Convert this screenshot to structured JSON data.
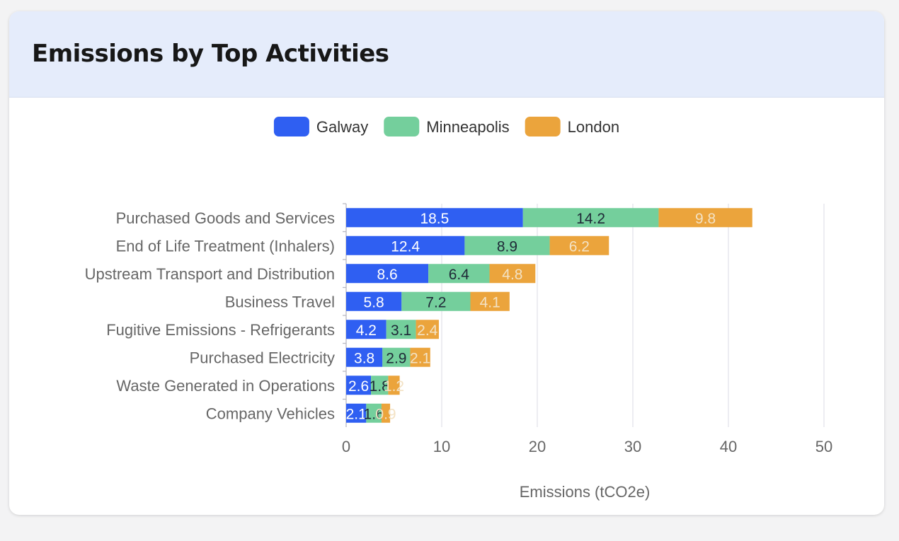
{
  "card": {
    "title": "Emissions by Top Activities"
  },
  "colors": {
    "galway": "#2f5ff2",
    "minneapolis": "#74cf9c",
    "london": "#eba43c",
    "label_galway": "#ffffff",
    "label_minneapolis": "#1f2937",
    "label_london": "#f3e2c4",
    "grid": "#e3e3ea",
    "axis_text": "#666666"
  },
  "chart_data": {
    "type": "bar",
    "orientation": "horizontal",
    "stacked": true,
    "title": "",
    "xlabel": "Emissions (tCO2e)",
    "ylabel": "",
    "xlim": [
      0,
      50
    ],
    "xticks": [
      0,
      10,
      20,
      30,
      40,
      50
    ],
    "grid": true,
    "legend_position": "top",
    "categories": [
      "Purchased Goods and Services",
      "End of Life Treatment (Inhalers)",
      "Upstream Transport and Distribution",
      "Business Travel",
      "Fugitive Emissions - Refrigerants",
      "Purchased Electricity",
      "Waste Generated in Operations",
      "Company Vehicles"
    ],
    "series": [
      {
        "name": "Galway",
        "values": [
          18.5,
          12.4,
          8.6,
          5.8,
          4.2,
          3.8,
          2.6,
          2.1
        ]
      },
      {
        "name": "Minneapolis",
        "values": [
          14.2,
          8.9,
          6.4,
          7.2,
          3.1,
          2.9,
          1.8,
          1.6
        ]
      },
      {
        "name": "London",
        "values": [
          9.8,
          6.2,
          4.8,
          4.1,
          2.4,
          2.1,
          1.2,
          0.9
        ]
      }
    ]
  }
}
